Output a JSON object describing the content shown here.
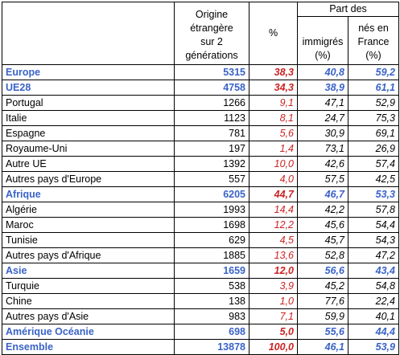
{
  "header": {
    "origin_lines": [
      "Origine",
      "étrangère",
      "sur 2",
      "générations"
    ],
    "pct": "%",
    "part_des": "Part des",
    "immigres_lines": [
      "immigrés",
      "(%)"
    ],
    "nes_lines": [
      "nés en",
      "France",
      "(%)"
    ]
  },
  "rows": [
    {
      "label": "Europe",
      "origin": "5315",
      "pct": "38,3",
      "imm": "40,8",
      "nes": "59,2",
      "summary": true
    },
    {
      "label": "UE28",
      "origin": "4758",
      "pct": "34,3",
      "imm": "38,9",
      "nes": "61,1",
      "summary": true
    },
    {
      "label": "Portugal",
      "origin": "1266",
      "pct": "9,1",
      "imm": "47,1",
      "nes": "52,9",
      "summary": false
    },
    {
      "label": "Italie",
      "origin": "1123",
      "pct": "8,1",
      "imm": "24,7",
      "nes": "75,3",
      "summary": false
    },
    {
      "label": "Espagne",
      "origin": "781",
      "pct": "5,6",
      "imm": "30,9",
      "nes": "69,1",
      "summary": false
    },
    {
      "label": "Royaume-Uni",
      "origin": "197",
      "pct": "1,4",
      "imm": "73,1",
      "nes": "26,9",
      "summary": false
    },
    {
      "label": "Autre UE",
      "origin": "1392",
      "pct": "10,0",
      "imm": "42,6",
      "nes": "57,4",
      "summary": false
    },
    {
      "label": "Autres pays d'Europe",
      "origin": "557",
      "pct": "4,0",
      "imm": "57,5",
      "nes": "42,5",
      "summary": false
    },
    {
      "label": "Afrique",
      "origin": "6205",
      "pct": "44,7",
      "imm": "46,7",
      "nes": "53,3",
      "summary": true
    },
    {
      "label": "Algérie",
      "origin": "1993",
      "pct": "14,4",
      "imm": "42,2",
      "nes": "57,8",
      "summary": false
    },
    {
      "label": "Maroc",
      "origin": "1698",
      "pct": "12,2",
      "imm": "45,6",
      "nes": "54,4",
      "summary": false
    },
    {
      "label": "Tunisie",
      "origin": "629",
      "pct": "4,5",
      "imm": "45,7",
      "nes": "54,3",
      "summary": false
    },
    {
      "label": "Autres pays d'Afrique",
      "origin": "1885",
      "pct": "13,6",
      "imm": "52,8",
      "nes": "47,2",
      "summary": false
    },
    {
      "label": "Asie",
      "origin": "1659",
      "pct": "12,0",
      "imm": "56,6",
      "nes": "43,4",
      "summary": true
    },
    {
      "label": "Turquie",
      "origin": "538",
      "pct": "3,9",
      "imm": "45,2",
      "nes": "54,8",
      "summary": false
    },
    {
      "label": "Chine",
      "origin": "138",
      "pct": "1,0",
      "imm": "77,6",
      "nes": "22,4",
      "summary": false
    },
    {
      "label": "Autres pays d'Asie",
      "origin": "983",
      "pct": "7,1",
      "imm": "59,9",
      "nes": "40,1",
      "summary": false
    },
    {
      "label": "Amérique Océanie",
      "origin": "698",
      "pct": "5,0",
      "imm": "55,6",
      "nes": "44,4",
      "summary": true
    },
    {
      "label": "Ensemble",
      "origin": "13878",
      "pct": "100,0",
      "imm": "46,1",
      "nes": "53,9",
      "summary": true
    }
  ],
  "colors": {
    "summary_text": "#3a63c7",
    "pct_text": "#cc2222",
    "border": "#000000"
  }
}
